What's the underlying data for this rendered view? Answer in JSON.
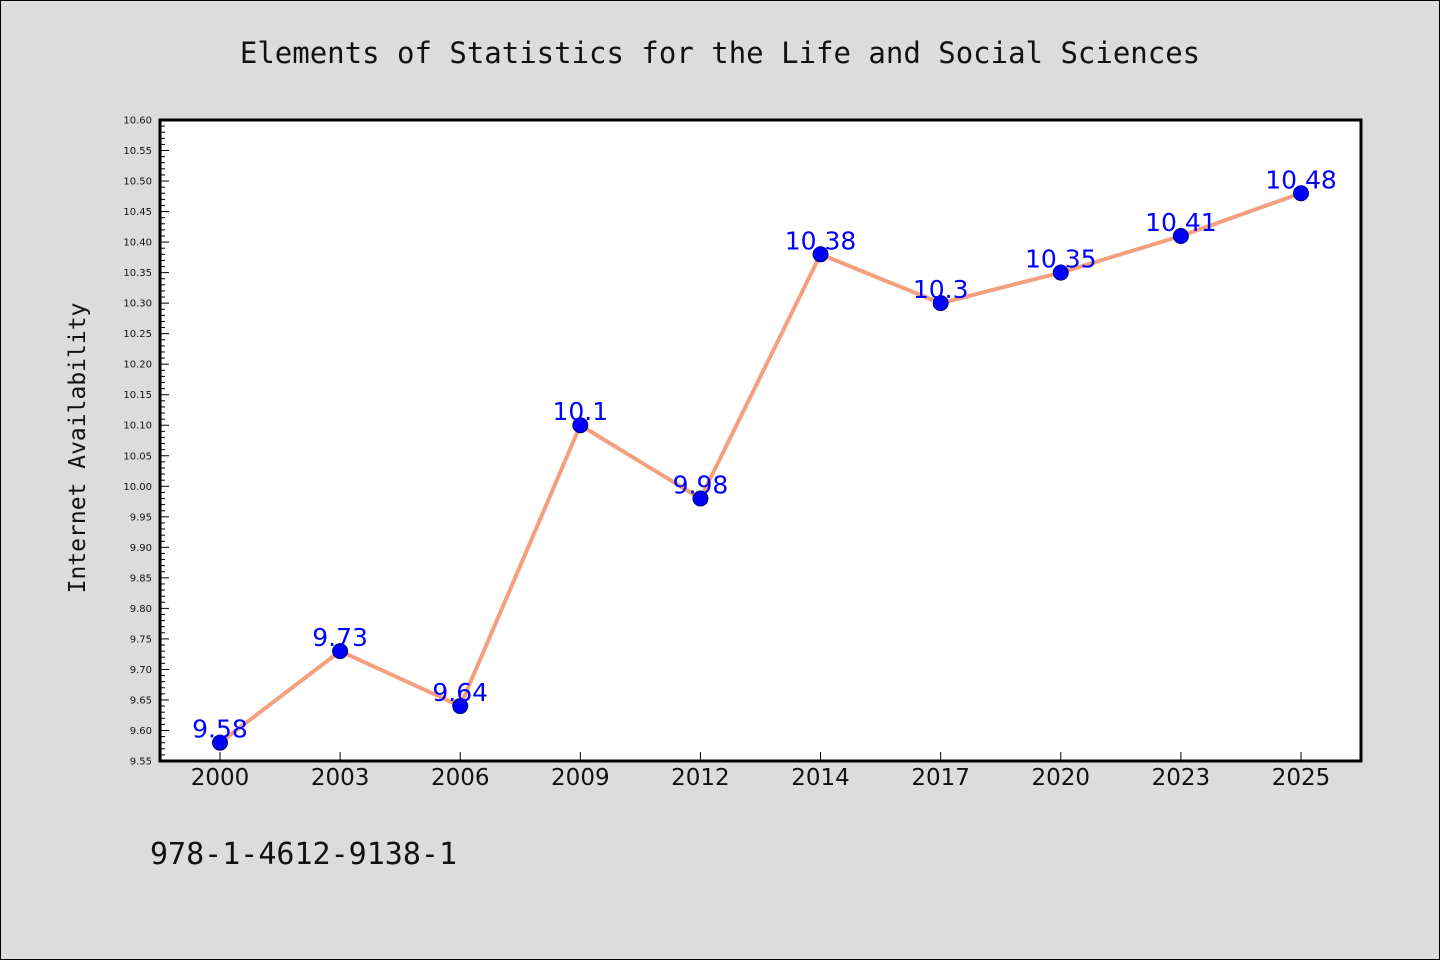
{
  "chart_data": {
    "type": "line",
    "title": "Elements of Statistics for the Life and Social Sciences",
    "xlabel": "",
    "ylabel": "Internet Availability",
    "categories": [
      "2000",
      "2003",
      "2006",
      "2009",
      "2012",
      "2014",
      "2017",
      "2020",
      "2023",
      "2025"
    ],
    "series": [
      {
        "values": [
          9.58,
          9.73,
          9.64,
          10.1,
          9.98,
          10.38,
          10.3,
          10.35,
          10.41,
          10.48
        ],
        "labels": [
          "9.58",
          "9.73",
          "9.64",
          "10.1",
          "9.98",
          "10.38",
          "10.3",
          "10.35",
          "10.41",
          "10.48"
        ],
        "line_color": "#f4a07e",
        "marker_color": "#0000ff"
      }
    ],
    "ylim": [
      9.55,
      10.6
    ],
    "yticks": [
      "9.55",
      "9.60",
      "9.65",
      "9.70",
      "9.75",
      "9.80",
      "9.85",
      "9.90",
      "9.95",
      "10.00",
      "10.05",
      "10.10",
      "10.15",
      "10.20",
      "10.25",
      "10.30",
      "10.35",
      "10.40",
      "10.45",
      "10.50",
      "10.55",
      "10.60"
    ],
    "grid": false,
    "legend": "none"
  },
  "footer": {
    "isbn": "978-1-4612-9138-1"
  },
  "colors": {
    "background": "#dcdcdc",
    "plot_background": "#ffffff",
    "label_color": "#0000ff"
  }
}
